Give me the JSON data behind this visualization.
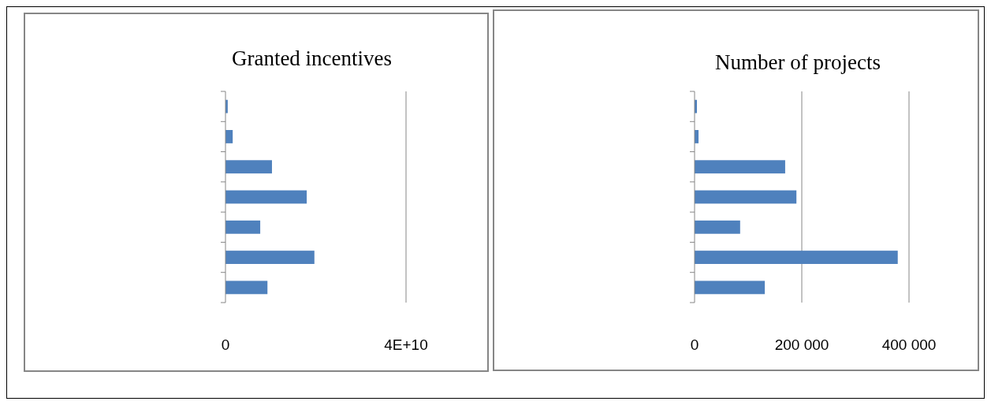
{
  "chart_data": [
    {
      "type": "bar",
      "orientation": "horizontal",
      "title": "Granted incentives",
      "categories": [
        null,
        null,
        null,
        null,
        null,
        null,
        null
      ],
      "values": [
        500000000,
        1600000000,
        10300000000,
        18000000000,
        7700000000,
        19700000000,
        9300000000
      ],
      "color": "#4f81bd",
      "xlim": [
        0,
        40000000000
      ],
      "xticks": [
        0,
        {
          "value": 40000000000,
          "label": "4E+10"
        }
      ],
      "grid": "x"
    },
    {
      "type": "bar",
      "orientation": "horizontal",
      "title": "Number of projects",
      "categories": [
        null,
        null,
        null,
        null,
        null,
        null,
        null
      ],
      "values": [
        4400,
        7400,
        169000,
        190000,
        85000,
        379000,
        131000
      ],
      "color": "#4f81bd",
      "xlim": [
        0,
        400000
      ],
      "xticks": [
        0,
        {
          "value": 200000,
          "label": "200 000"
        },
        {
          "value": 400000,
          "label": "400 000"
        }
      ],
      "grid": "x"
    }
  ]
}
